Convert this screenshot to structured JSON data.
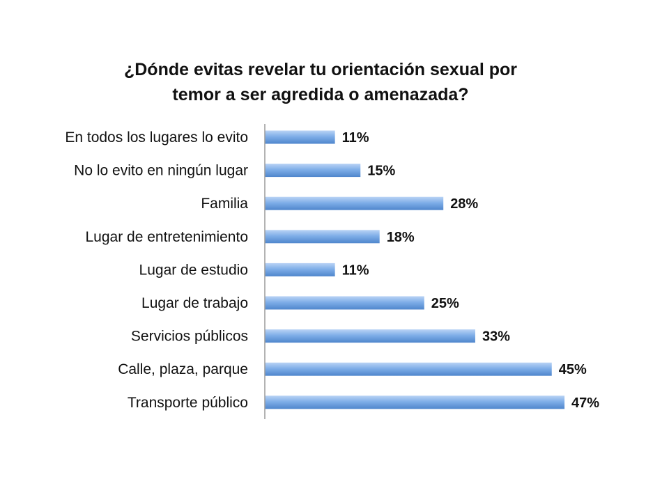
{
  "chart_data": {
    "type": "bar",
    "orientation": "horizontal",
    "title_lines": [
      "¿Dónde evitas revelar tu orientación sexual por",
      "temor a ser agredida o amenazada?"
    ],
    "categories": [
      "En todos los lugares lo evito",
      "No lo evito en ningún lugar",
      "Familia",
      "Lugar de entretenimiento",
      "Lugar de estudio",
      "Lugar de trabajo",
      "Servicios públicos",
      "Calle, plaza, parque",
      "Transporte público"
    ],
    "values": [
      11,
      15,
      28,
      18,
      11,
      25,
      33,
      45,
      47
    ],
    "value_labels": [
      "11%",
      "15%",
      "28%",
      "18%",
      "11%",
      "25%",
      "33%",
      "45%",
      "47%"
    ],
    "unit": "%",
    "xlim": [
      0,
      50
    ],
    "grid": false,
    "legend": "none",
    "bar_color": "#7FAEE8",
    "bar_color_light": "#B9D3F5",
    "bar_color_dark": "#4F86CC"
  }
}
